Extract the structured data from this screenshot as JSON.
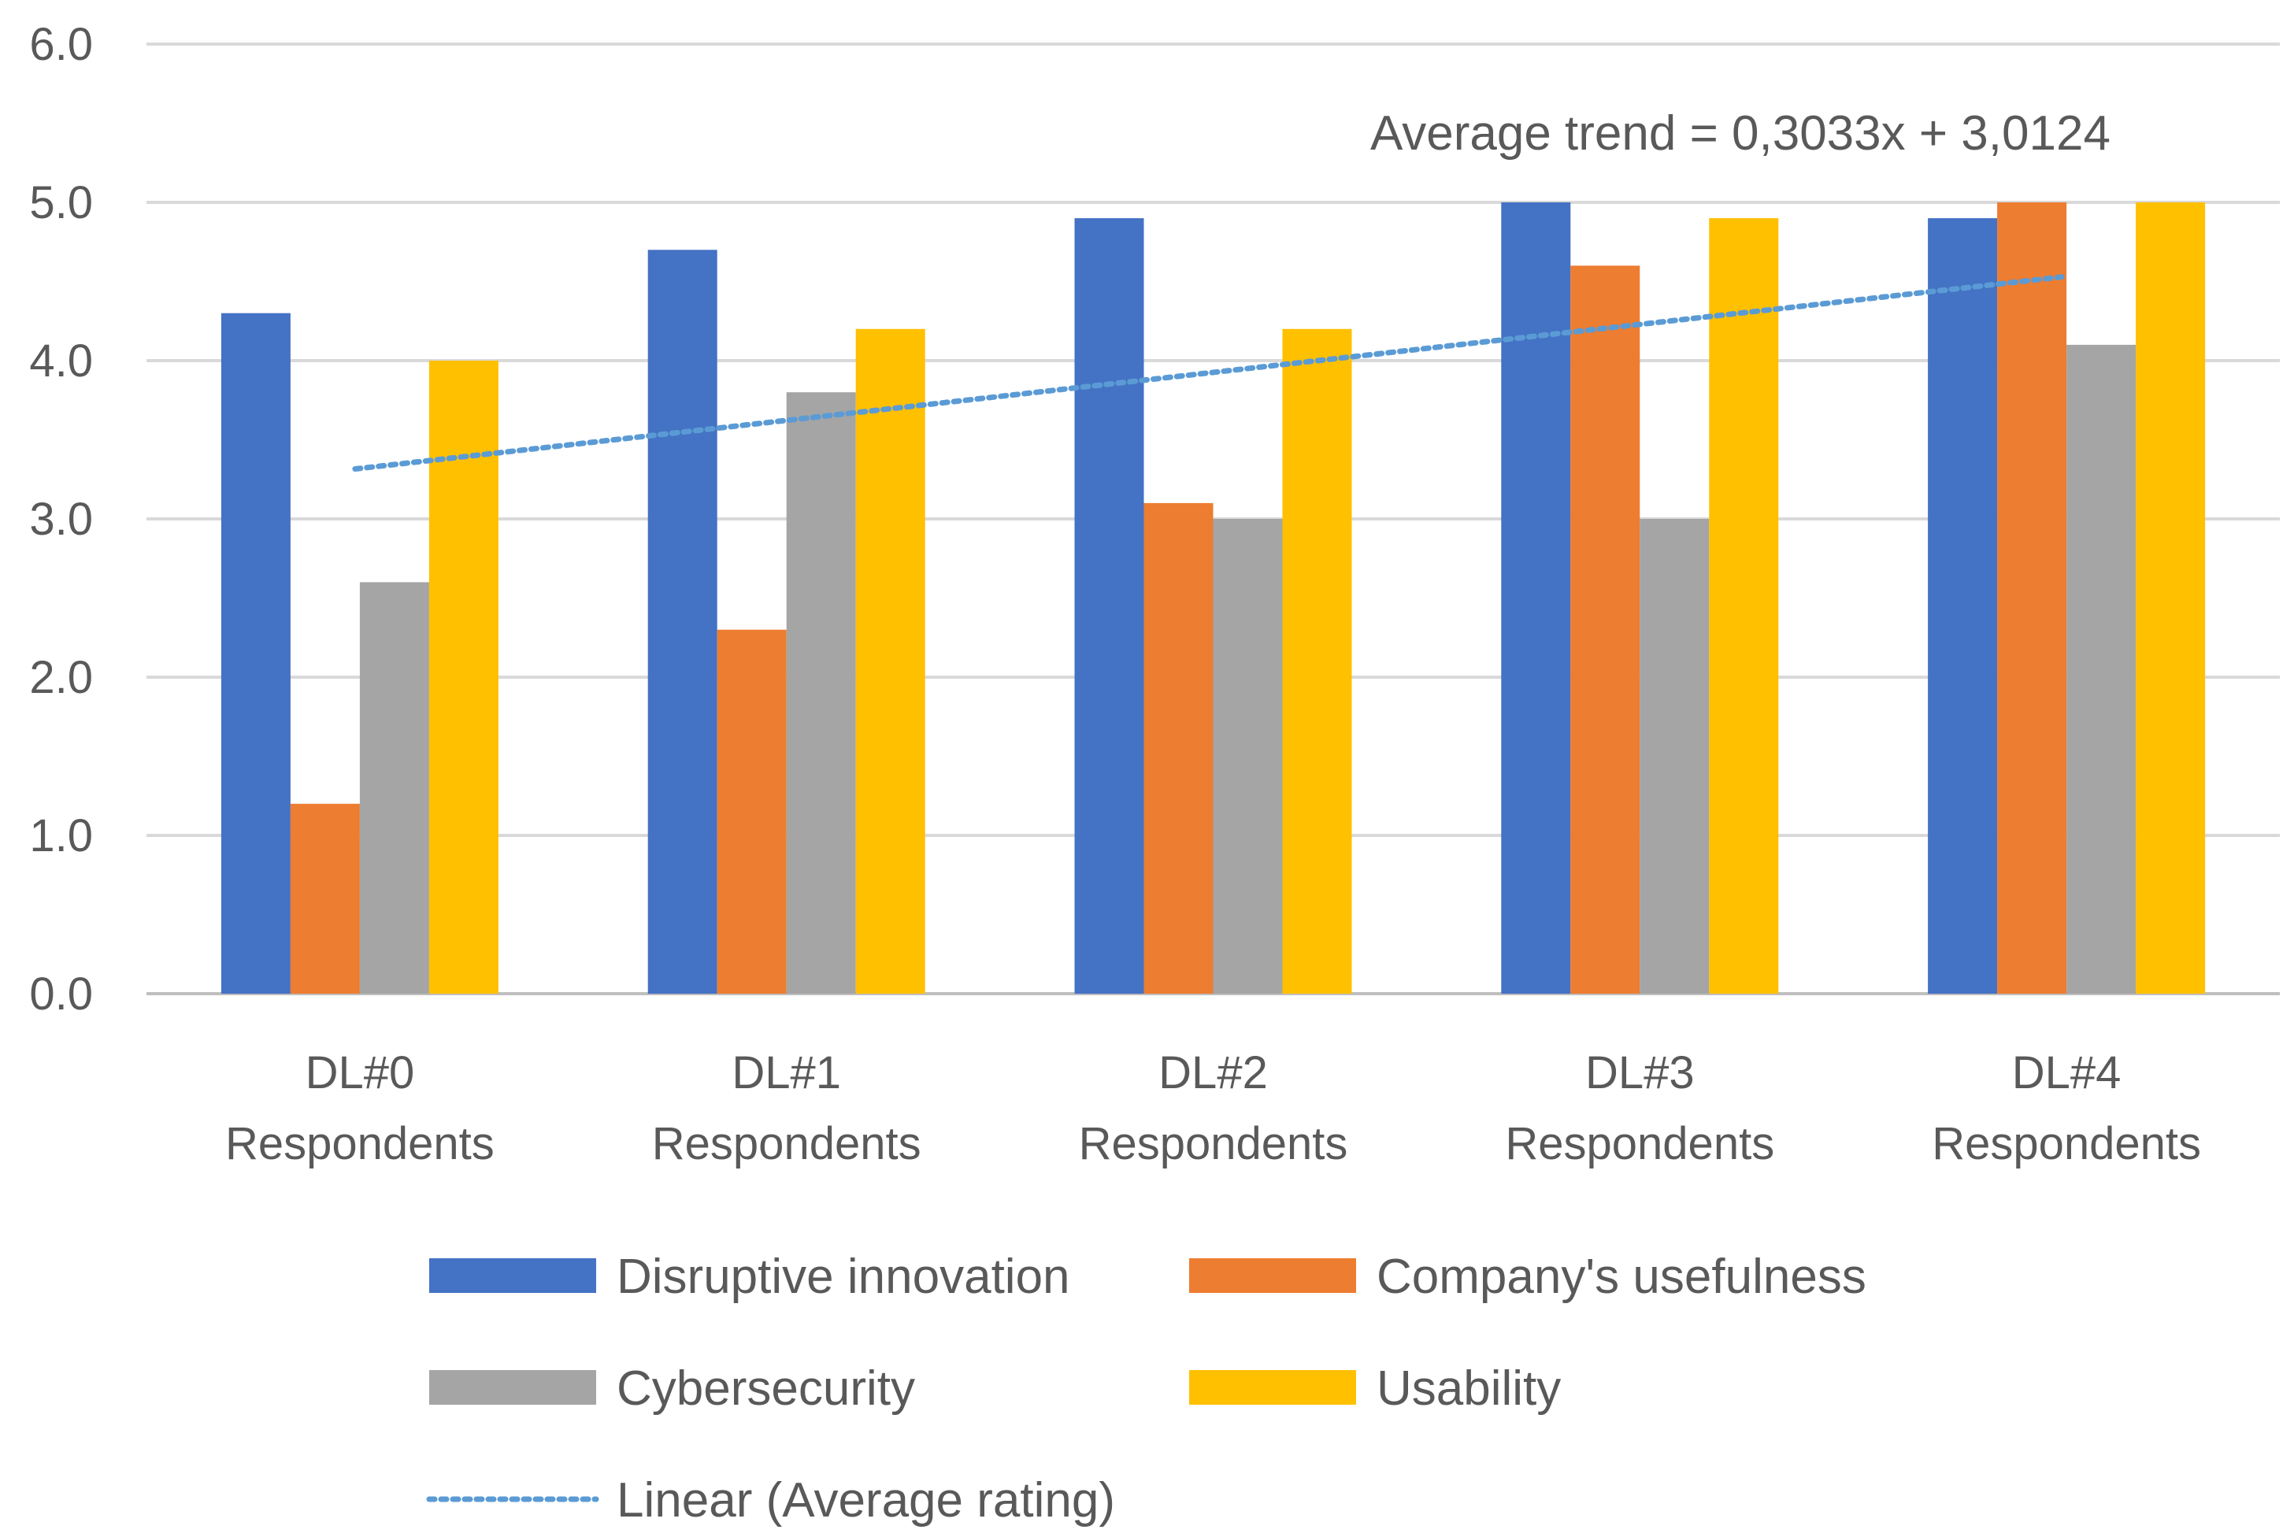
{
  "chart_data": {
    "type": "bar",
    "title": "",
    "xlabel": "",
    "ylabel": "",
    "ylim": [
      0,
      6
    ],
    "yticks": [
      "0.0",
      "1.0",
      "2.0",
      "3.0",
      "4.0",
      "5.0",
      "6.0"
    ],
    "grid": true,
    "categories": [
      {
        "line1": "DL#0",
        "line2": "Respondents"
      },
      {
        "line1": "DL#1",
        "line2": "Respondents"
      },
      {
        "line1": "DL#2",
        "line2": "Respondents"
      },
      {
        "line1": "DL#3",
        "line2": "Respondents"
      },
      {
        "line1": "DL#4",
        "line2": "Respondents"
      }
    ],
    "series": [
      {
        "name": "Disruptive innovation",
        "color": "#4472C4",
        "values": [
          4.3,
          4.7,
          4.9,
          5.0,
          4.9
        ]
      },
      {
        "name": "Company's usefulness",
        "color": "#ED7D31",
        "values": [
          1.2,
          2.3,
          3.1,
          4.6,
          5.0
        ]
      },
      {
        "name": "Cybersecurity",
        "color": "#A5A5A5",
        "values": [
          2.6,
          3.8,
          3.0,
          3.0,
          4.1
        ]
      },
      {
        "name": "Usability",
        "color": "#FFC000",
        "values": [
          4.0,
          4.2,
          4.2,
          4.9,
          5.0
        ]
      }
    ],
    "trendline": {
      "name": "Linear (Average rating)",
      "color": "#5B9BD5",
      "slope": 0.3033,
      "intercept": 3.0124,
      "annotation": "Average trend = 0,3033x + 3,0124"
    },
    "legend_position": "bottom"
  }
}
